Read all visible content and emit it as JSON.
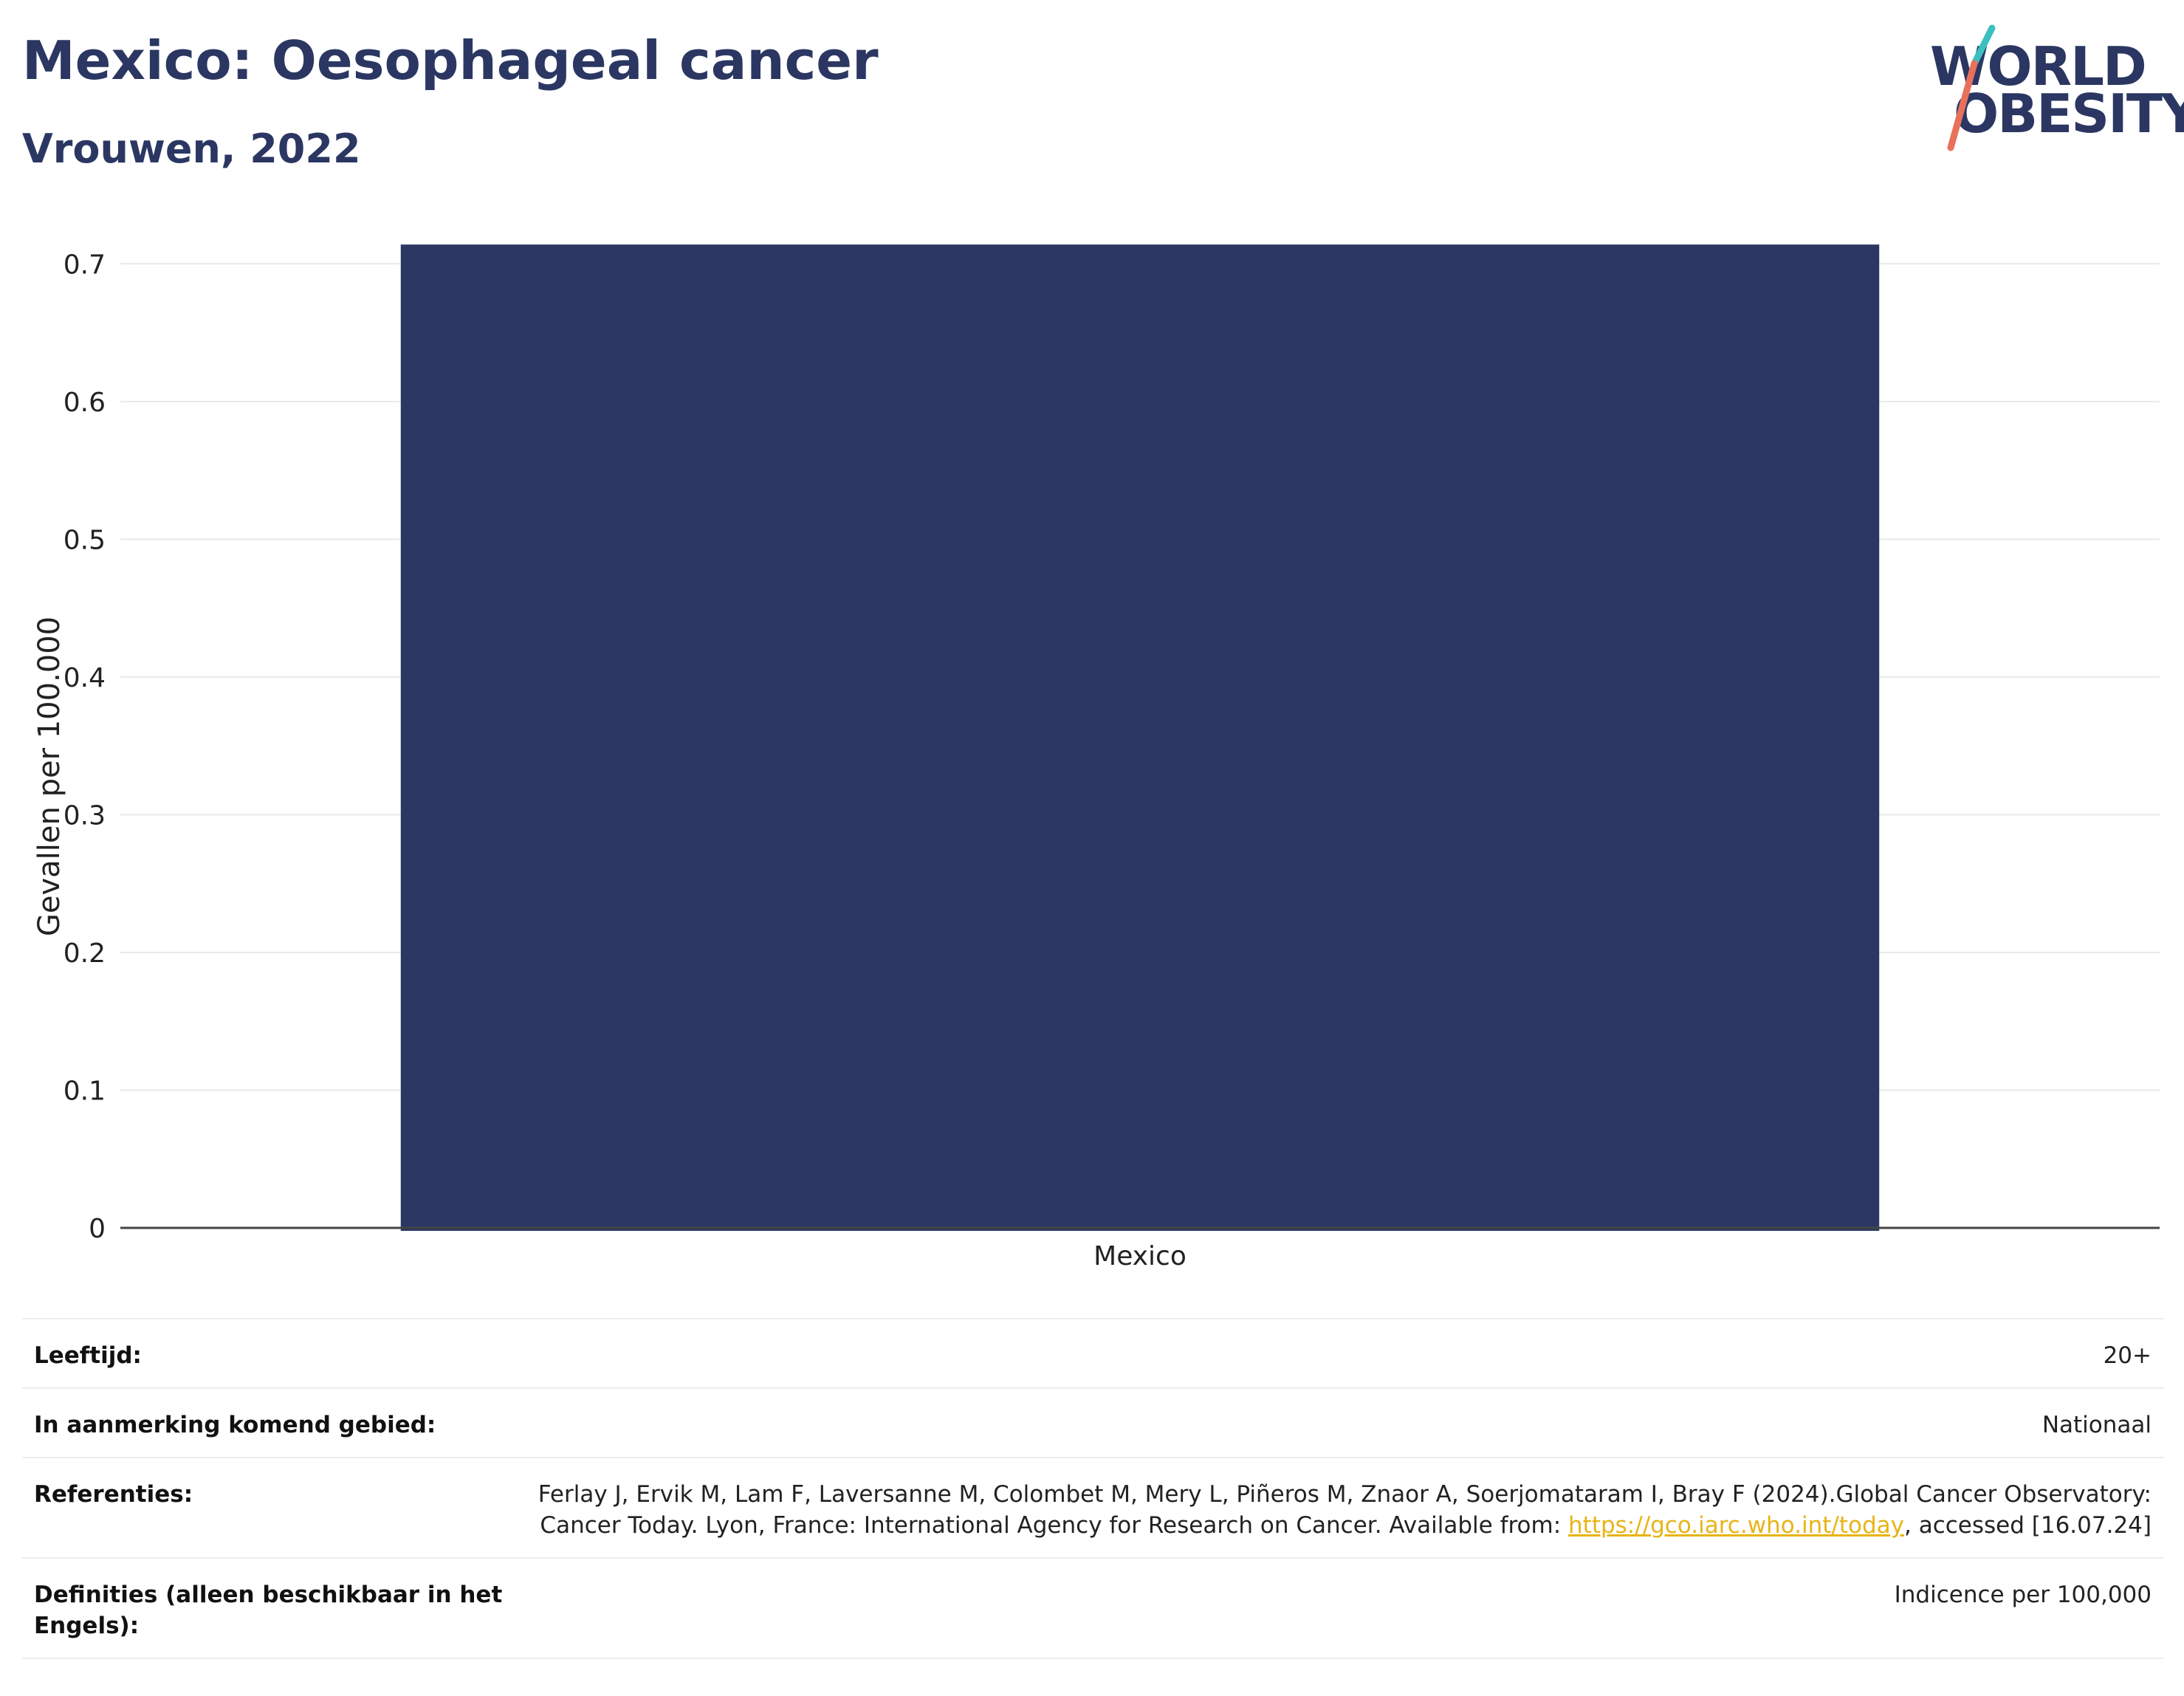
{
  "header": {
    "title": "Mexico: Oesophageal cancer",
    "subtitle": "Vrouwen, 2022"
  },
  "logo": {
    "line1": "WORLD",
    "line2": "OBESITY",
    "colors": {
      "text": "#2b3762",
      "slash_top": "#3bbfbf",
      "slash_bottom": "#e8715c"
    }
  },
  "chart_data": {
    "type": "bar",
    "categories": [
      "Mexico"
    ],
    "values": [
      0.714
    ],
    "xlabel": "",
    "ylabel": "Gevallen per 100.000",
    "ylim": [
      0,
      0.72
    ],
    "yticks": [
      0,
      0.1,
      0.2,
      0.3,
      0.4,
      0.5,
      0.6,
      0.7
    ],
    "ytick_labels": [
      "0",
      "0.1",
      "0.2",
      "0.3",
      "0.4",
      "0.5",
      "0.6",
      "0.7"
    ],
    "grid": true,
    "bar_color": "#2b3762"
  },
  "meta": {
    "rows": [
      {
        "label": "Leeftijd:",
        "value": "20+"
      },
      {
        "label": "In aanmerking komend gebied:",
        "value": "Nationaal"
      },
      {
        "label": "Referenties:",
        "value_before": "Ferlay J, Ervik M, Lam F, Laversanne M, Colombet M, Mery L, Piñeros M, Znaor A, Soerjomataram I, Bray F (2024).Global Cancer Observatory: Cancer Today. Lyon, France: International Agency for Research on Cancer. Available from: ",
        "link": "https://gco.iarc.who.int/today",
        "value_after": ", accessed [16.07.24]"
      },
      {
        "label": "Definities (alleen beschikbaar in het Engels):",
        "value": "Indicence per 100,000"
      }
    ],
    "link_color": "#e8b417"
  }
}
